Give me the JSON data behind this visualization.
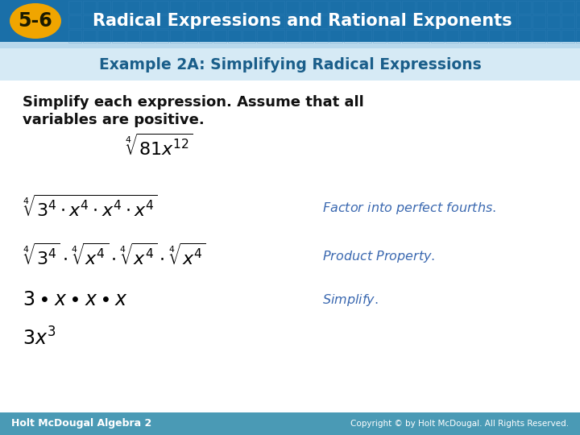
{
  "header_bg_color": "#1a6fa8",
  "header_text_color": "#ffffff",
  "header_title": "Radical Expressions and Rational Exponents",
  "header_badge_bg": "#f0a500",
  "header_badge_text": "5-6",
  "example_title": "Example 2A: Simplifying Radical Expressions",
  "example_title_color": "#1a5e8a",
  "body_bg": "#ffffff",
  "instruction_line1": "Simplify each expression. Assume that all",
  "instruction_line2": "variables are positive.",
  "instruction_color": "#111111",
  "annotation_color": "#3a68b0",
  "footer_bg": "#4a9ab5",
  "footer_left": "Holt McDougal Algebra 2",
  "footer_right": "Copyright © by Holt McDougal. All Rights Reserved.",
  "footer_text_color": "#ffffff",
  "header_grid_color": "#3a85be"
}
